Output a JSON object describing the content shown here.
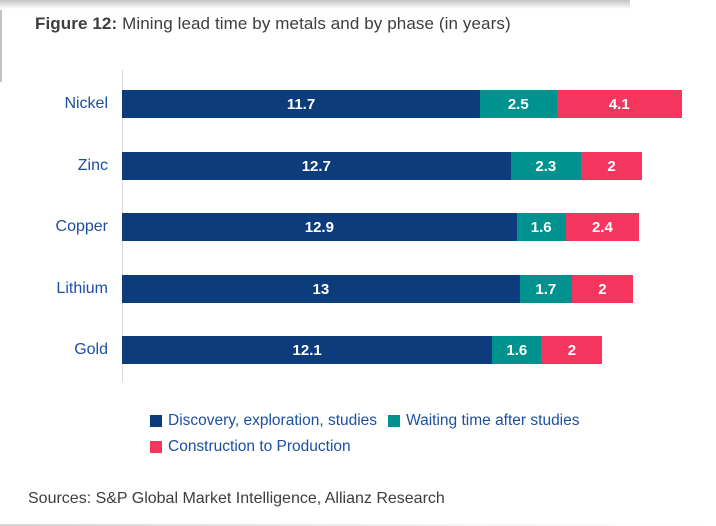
{
  "title": {
    "figure_label": "Figure 12:",
    "text": " Mining lead time by metals and by phase (in years)"
  },
  "chart_data": {
    "type": "bar",
    "orientation": "horizontal",
    "stacked": true,
    "title": "Mining lead time by metals and by phase (in years)",
    "categories": [
      "Nickel",
      "Zinc",
      "Copper",
      "Lithium",
      "Gold"
    ],
    "series": [
      {
        "name": "Discovery, exploration, studies",
        "color": "#0d3c7c",
        "values": [
          11.7,
          12.7,
          12.9,
          13,
          12.1
        ]
      },
      {
        "name": "Waiting time after studies",
        "color": "#00928e",
        "values": [
          2.5,
          2.3,
          1.6,
          1.7,
          1.6
        ]
      },
      {
        "name": "Construction to Production",
        "color": "#f4365f",
        "values": [
          4.1,
          2,
          2.4,
          2,
          2
        ]
      }
    ],
    "totals": [
      18.3,
      17.0,
      16.9,
      16.7,
      15.7
    ],
    "xlabel": "",
    "ylabel": "",
    "xlim": [
      0,
      18.3
    ],
    "grid": false,
    "value_labels_shown": true,
    "legend_position": "bottom"
  },
  "colors": {
    "discovery": "#0d3c7c",
    "waiting": "#00928e",
    "construction": "#f4365f",
    "category_label": "#1d4fa1",
    "legend_text": "#1d4fa1",
    "title_text": "#3d3d3d",
    "axis_line": "#d9d9d9"
  },
  "footer": {
    "sources": "Sources: S&P Global Market Intelligence, Allianz Research"
  }
}
